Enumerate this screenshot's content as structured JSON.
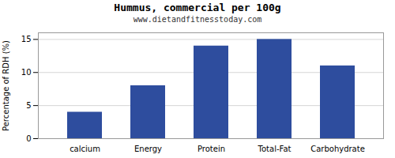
{
  "chart_data": {
    "type": "bar",
    "title": "Hummus, commercial per 100g",
    "subtitle": "www.dietandfitnesstoday.com",
    "categories": [
      "calcium",
      "Energy",
      "Protein",
      "Total-Fat",
      "Carbohydrate"
    ],
    "values": [
      4,
      8,
      14,
      15,
      11
    ],
    "color": "#2e4d9e",
    "ylabel": "Percentage of RDH (%)",
    "ylim": [
      0,
      16
    ],
    "yticks": [
      0,
      5,
      10,
      15
    ],
    "grid": true
  }
}
